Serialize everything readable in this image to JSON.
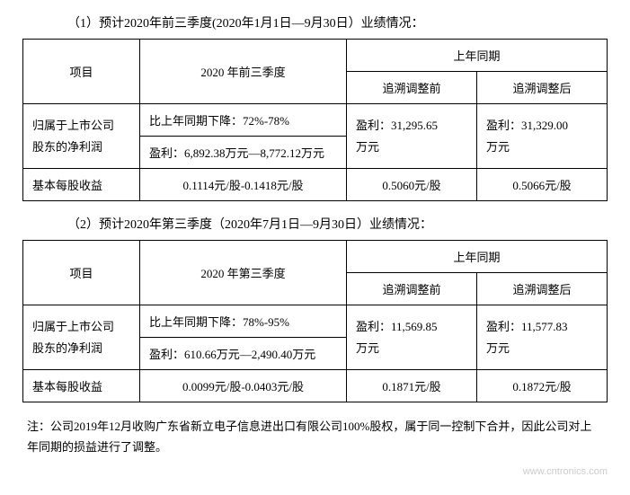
{
  "table1": {
    "title": "（1）预计2020年前三季度(2020年1月1日—9月30日）业绩情况：",
    "headers": {
      "item": "项目",
      "period": "2020 年前三季度",
      "prev_year": "上年同期",
      "before_adj": "追溯调整前",
      "after_adj": "追溯调整后"
    },
    "rows": [
      {
        "item1": "归属于上市公司",
        "item2": "股东的净利润",
        "q_line1": "比上年同期下降：72%-78%",
        "q_line2": "盈利：6,892.38万元—8,772.12万元",
        "before1": "盈利：31,295.65",
        "before2": "万元",
        "after1": "盈利：31,329.00",
        "after2": "万元"
      },
      {
        "item": "基本每股收益",
        "q": "0.1114元/股-0.1418元/股",
        "before": "0.5060元/股",
        "after": "0.5066元/股"
      }
    ]
  },
  "table2": {
    "title": "（2）预计2020年第三季度（2020年7月1日—9月30日）业绩情况：",
    "headers": {
      "item": "项目",
      "period": "2020 年第三季度",
      "prev_year": "上年同期",
      "before_adj": "追溯调整前",
      "after_adj": "追溯调整后"
    },
    "rows": [
      {
        "item1": "归属于上市公司",
        "item2": "股东的净利润",
        "q_line1": "比上年同期下降：78%-95%",
        "q_line2": "盈利：610.66万元—2,490.40万元",
        "before1": "盈利：11,569.85",
        "before2": "万元",
        "after1": "盈利：11,577.83",
        "after2": "万元"
      },
      {
        "item": "基本每股收益",
        "q": "0.0099元/股-0.0403元/股",
        "before": "0.1871元/股",
        "after": "0.1872元/股"
      }
    ]
  },
  "note": "注：公司2019年12月收购广东省新立电子信息进出口有限公司100%股权，属于同一控制下合并，因此公司对上年同期的损益进行了调整。",
  "watermark": "www.cntronics.com"
}
